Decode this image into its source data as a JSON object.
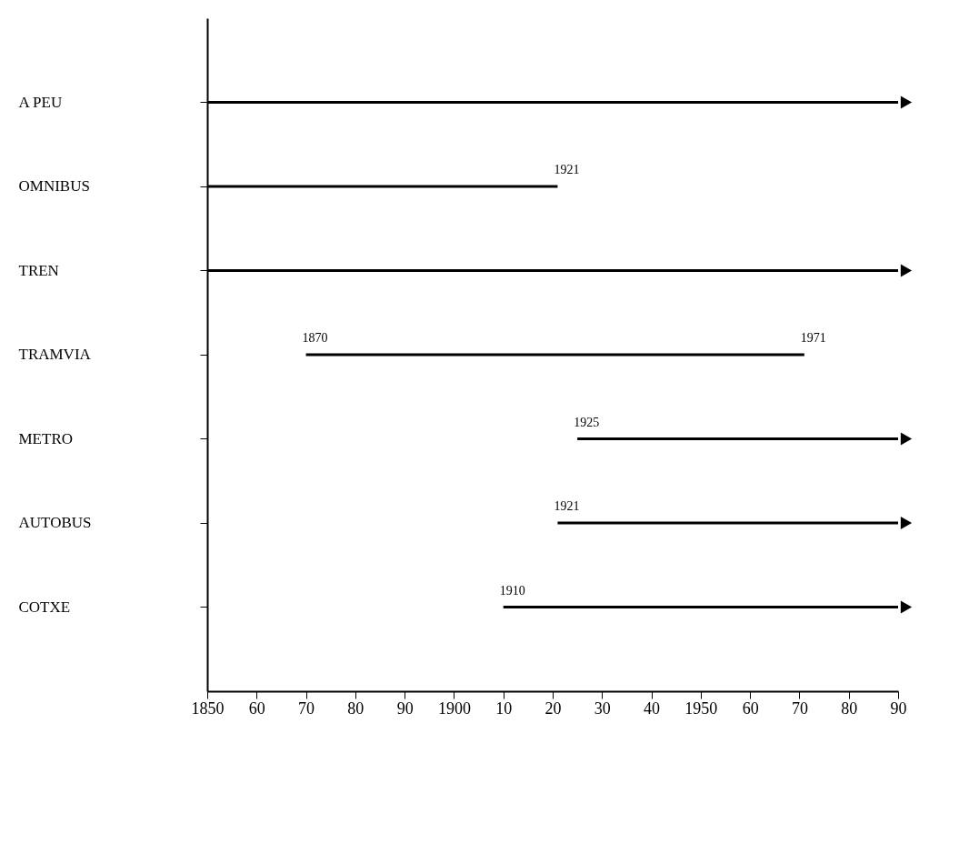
{
  "chart_data": {
    "type": "bar",
    "orientation": "horizontal",
    "categories": [
      "A PEU",
      "OMNIBUS",
      "TREN",
      "TRAMVIA",
      "METRO",
      "AUTOBUS",
      "COTXE"
    ],
    "base": [
      1850,
      1850,
      1850,
      1870,
      1925,
      1921,
      1910
    ],
    "values": [
      140,
      71,
      140,
      101,
      65,
      69,
      80
    ],
    "color": "#000000",
    "xlim": [
      1850,
      1990
    ],
    "xticks": [
      1850,
      {
        "value": 1860,
        "label": "60"
      },
      {
        "value": 1870,
        "label": "70"
      },
      {
        "value": 1880,
        "label": "80"
      },
      {
        "value": 1890,
        "label": "90"
      },
      1900,
      {
        "value": 1910,
        "label": "10"
      },
      {
        "value": 1920,
        "label": "20"
      },
      {
        "value": 1930,
        "label": "30"
      },
      {
        "value": 1940,
        "label": "40"
      },
      1950,
      {
        "value": 1960,
        "label": "60"
      },
      {
        "value": 1970,
        "label": "70"
      },
      {
        "value": 1980,
        "label": "80"
      },
      {
        "value": 1990,
        "label": "90"
      }
    ],
    "annotations": [
      {
        "text": "1921",
        "x": 1921,
        "y": "OMNIBUS"
      },
      {
        "text": "1870",
        "x": 1870,
        "y": "TRAMVIA"
      },
      {
        "text": "1971",
        "x": 1971,
        "y": "TRAMVIA"
      },
      {
        "text": "1925",
        "x": 1925,
        "y": "METRO"
      },
      {
        "text": "1921",
        "x": 1921,
        "y": "AUTOBUS"
      },
      {
        "text": "1910",
        "x": 1910,
        "y": "COTXE"
      }
    ],
    "grid": false
  }
}
